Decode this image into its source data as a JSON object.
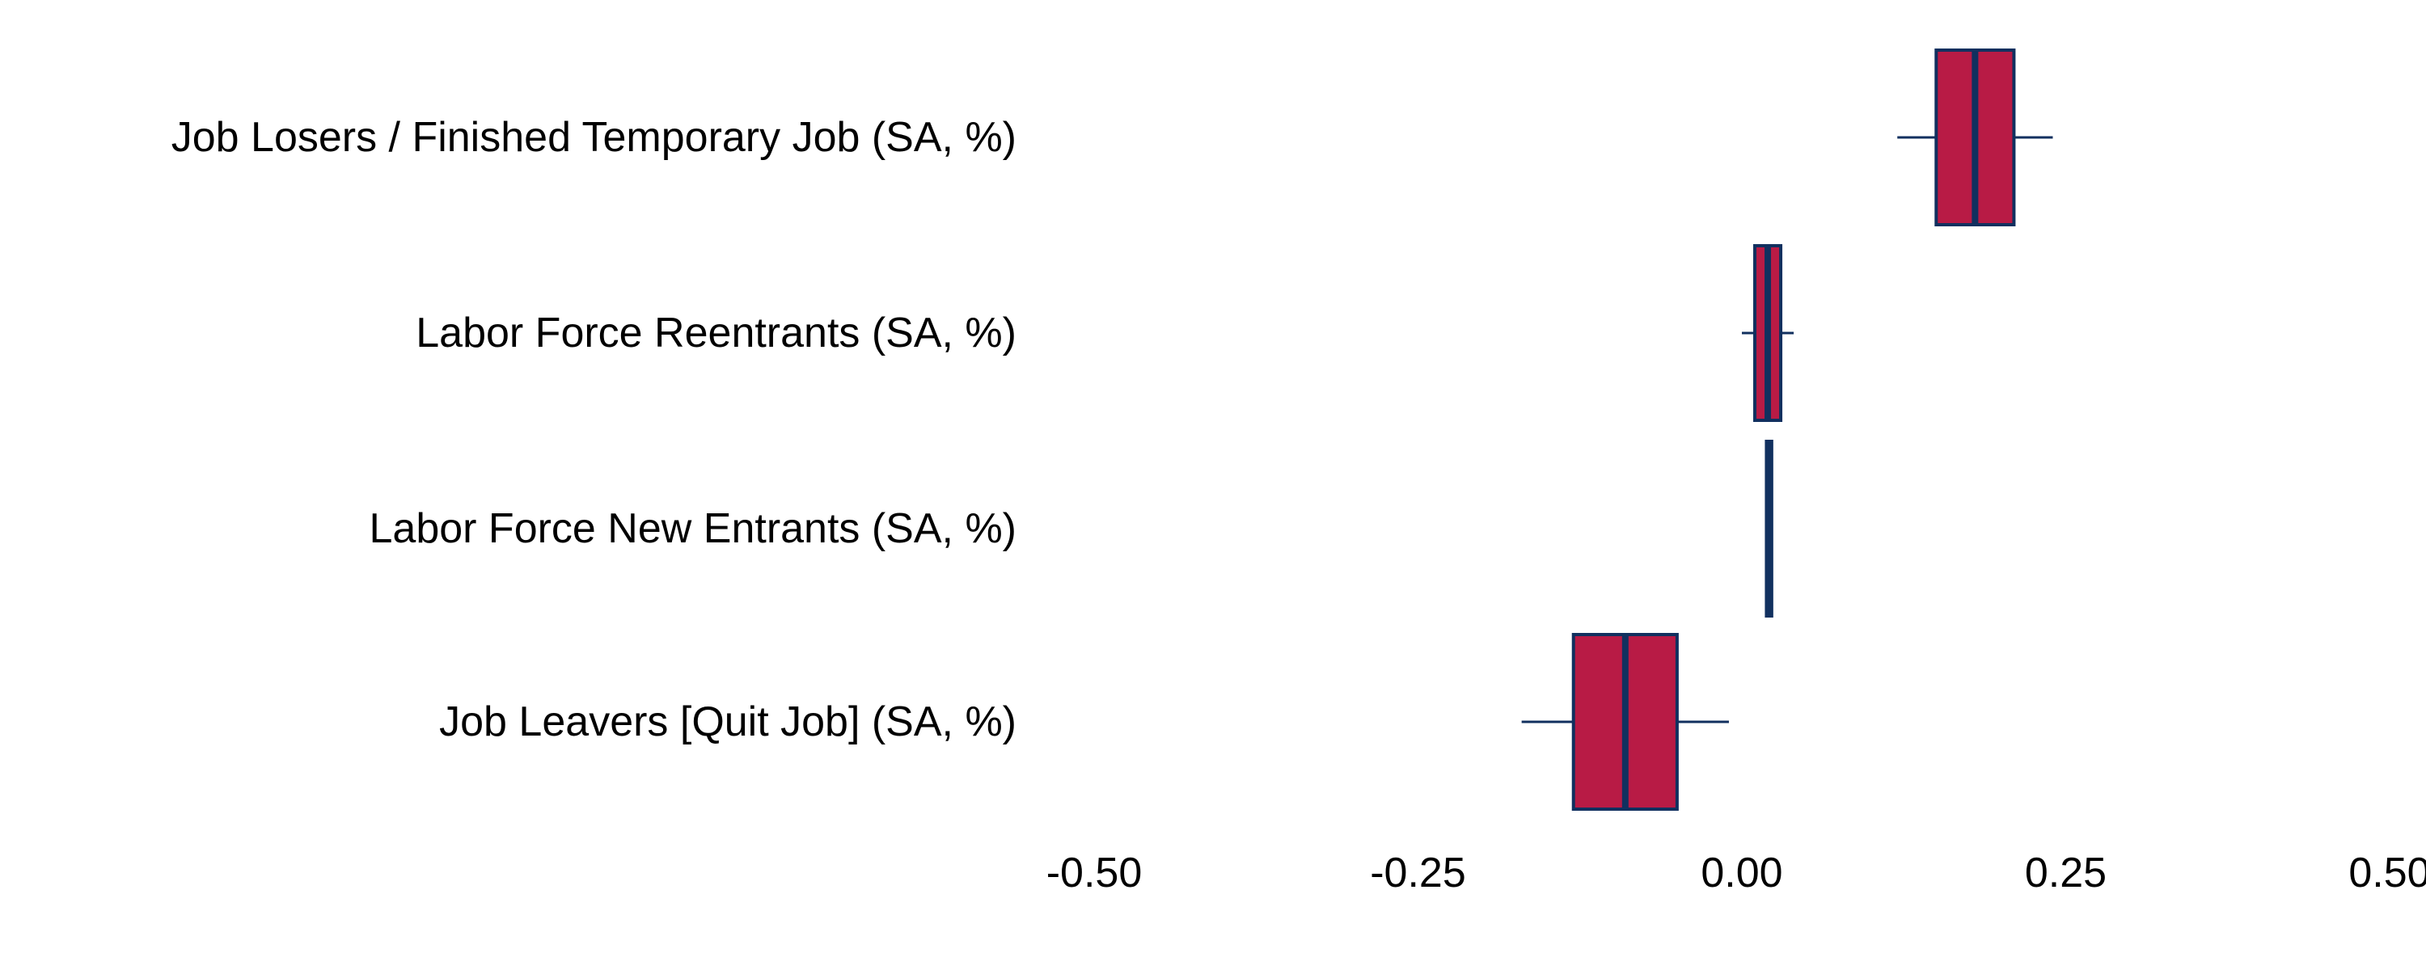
{
  "colors": {
    "box_fill": "#B81B45",
    "box_stroke": "#11305F",
    "background": "#FFFFFF",
    "text": "#000000"
  },
  "chart_data": {
    "type": "boxplot",
    "orientation": "horizontal",
    "title": "",
    "xlabel": "",
    "ylabel": "",
    "xlim": [
      -0.5,
      0.5
    ],
    "x_ticks": [
      -0.5,
      -0.25,
      0.0,
      0.25,
      0.5
    ],
    "x_tick_labels": [
      "-0.50",
      "-0.25",
      "0.00",
      "0.25",
      "0.50"
    ],
    "grid": false,
    "legend": "none",
    "categories": [
      "Job Losers / Finished Temporary Job (SA, %)",
      "Labor Force Reentrants (SA, %)",
      "Labor Force New Entrants (SA, %)",
      "Job Leavers [Quit Job] (SA, %)"
    ],
    "boxes": [
      {
        "category": "Job Losers / Finished Temporary Job (SA, %)",
        "whisker_low": 0.12,
        "q1": 0.15,
        "median": 0.18,
        "q3": 0.21,
        "whisker_high": 0.24
      },
      {
        "category": "Labor Force Reentrants (SA, %)",
        "whisker_low": 0.0,
        "q1": 0.01,
        "median": 0.02,
        "q3": 0.03,
        "whisker_high": 0.04
      },
      {
        "category": "Labor Force New Entrants (SA, %)",
        "whisker_low": 0.018,
        "q1": 0.019,
        "median": 0.021,
        "q3": 0.023,
        "whisker_high": 0.024
      },
      {
        "category": "Job Leavers [Quit Job] (SA, %)",
        "whisker_low": -0.17,
        "q1": -0.13,
        "median": -0.09,
        "q3": -0.05,
        "whisker_high": -0.01
      }
    ]
  }
}
